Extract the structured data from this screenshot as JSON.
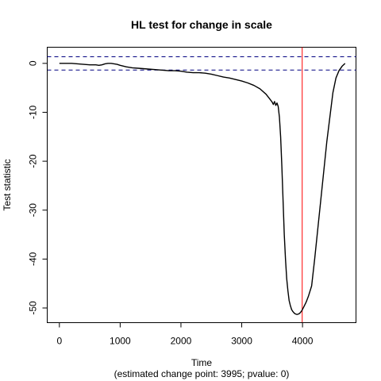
{
  "chart_data": {
    "type": "line",
    "title": "HL test for change in scale",
    "xlabel": "Time",
    "subtitle": "(estimated change point: 3995; pvalue: 0)",
    "ylabel": "Test statistic",
    "xlim": [
      -200,
      4880
    ],
    "ylim": [
      -53,
      3.3
    ],
    "x_ticks": [
      0,
      1000,
      2000,
      3000,
      4000
    ],
    "y_ticks": [
      0,
      -10,
      -20,
      -30,
      -40,
      -50
    ],
    "critical_values": [
      1.36,
      -1.36
    ],
    "critical_line_color": "#000080",
    "change_point": 3995,
    "change_point_color": "#ff0000",
    "line_color": "#000000",
    "series": [
      {
        "x": [
          0,
          200,
          400,
          500,
          600,
          650,
          700,
          750,
          800,
          850,
          900,
          950,
          1000,
          1100,
          1200,
          1300,
          1400,
          1500,
          1600,
          1700,
          1800,
          1900,
          2000,
          2100,
          2200,
          2300,
          2400,
          2500,
          2600,
          2700,
          2800,
          2900,
          3000,
          3100,
          3200,
          3300,
          3400,
          3450,
          3500,
          3520,
          3540,
          3560,
          3580,
          3600,
          3620,
          3640,
          3660,
          3680,
          3700,
          3720,
          3740,
          3760,
          3780,
          3800,
          3820,
          3840,
          3860,
          3880,
          3900,
          3920,
          3940,
          3960,
          3980,
          3995,
          4020,
          4060,
          4100,
          4150,
          4200,
          4250,
          4300,
          4350,
          4400,
          4450,
          4500,
          4550,
          4600,
          4650,
          4700
        ],
        "y": [
          0,
          0,
          -0.2,
          -0.3,
          -0.3,
          -0.4,
          -0.3,
          -0.1,
          0,
          0,
          -0.1,
          -0.2,
          -0.4,
          -0.7,
          -0.9,
          -1.0,
          -1.1,
          -1.2,
          -1.3,
          -1.4,
          -1.5,
          -1.5,
          -1.6,
          -1.8,
          -1.9,
          -1.9,
          -2.0,
          -2.2,
          -2.5,
          -2.8,
          -3.0,
          -3.3,
          -3.6,
          -4.0,
          -4.5,
          -5.2,
          -6.3,
          -7.1,
          -7.9,
          -8.4,
          -7.8,
          -8.6,
          -8.1,
          -8.8,
          -11,
          -15,
          -21,
          -28,
          -35,
          -40,
          -44,
          -46.5,
          -48.5,
          -49.5,
          -50.3,
          -50.7,
          -51.0,
          -51.2,
          -51.3,
          -51.3,
          -51.2,
          -51.0,
          -50.7,
          -50.4,
          -49.8,
          -48.8,
          -47.5,
          -45.5,
          -40,
          -34,
          -28,
          -22,
          -16,
          -11,
          -6,
          -3,
          -1.5,
          -0.6,
          0
        ]
      }
    ]
  }
}
